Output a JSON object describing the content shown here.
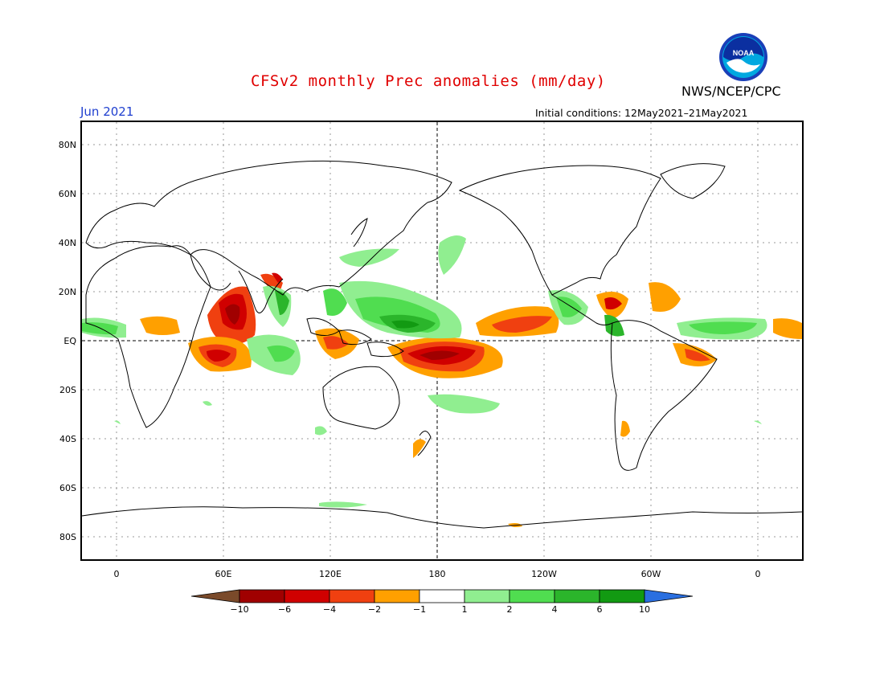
{
  "header": {
    "title": "CFSv2 monthly Prec anomalies (mm/day)",
    "month": "Jun 2021",
    "initial_conditions": "Initial conditions: 12May2021–21May2021",
    "agency": "NWS/NCEP/CPC",
    "logo_text": "NOAA"
  },
  "axes": {
    "lat_labels": [
      "80N",
      "60N",
      "40N",
      "20N",
      "EQ",
      "20S",
      "40S",
      "60S",
      "80S"
    ],
    "lon_labels": [
      "0",
      "60E",
      "120E",
      "180",
      "120W",
      "60W",
      "0"
    ]
  },
  "colorbar": {
    "labels": [
      "−10",
      "−6",
      "−4",
      "−2",
      "−1",
      "1",
      "2",
      "4",
      "6",
      "10"
    ],
    "colors": [
      "#7a4a2a",
      "#a00000",
      "#d00000",
      "#f04010",
      "#ffa000",
      "#ffffff",
      "#90ee90",
      "#50dd50",
      "#2bb52b",
      "#129a12",
      "#2a6fe0"
    ]
  },
  "colors": {
    "title": "#e00000",
    "month": "#1f3fcf",
    "coast": "#000000"
  }
}
